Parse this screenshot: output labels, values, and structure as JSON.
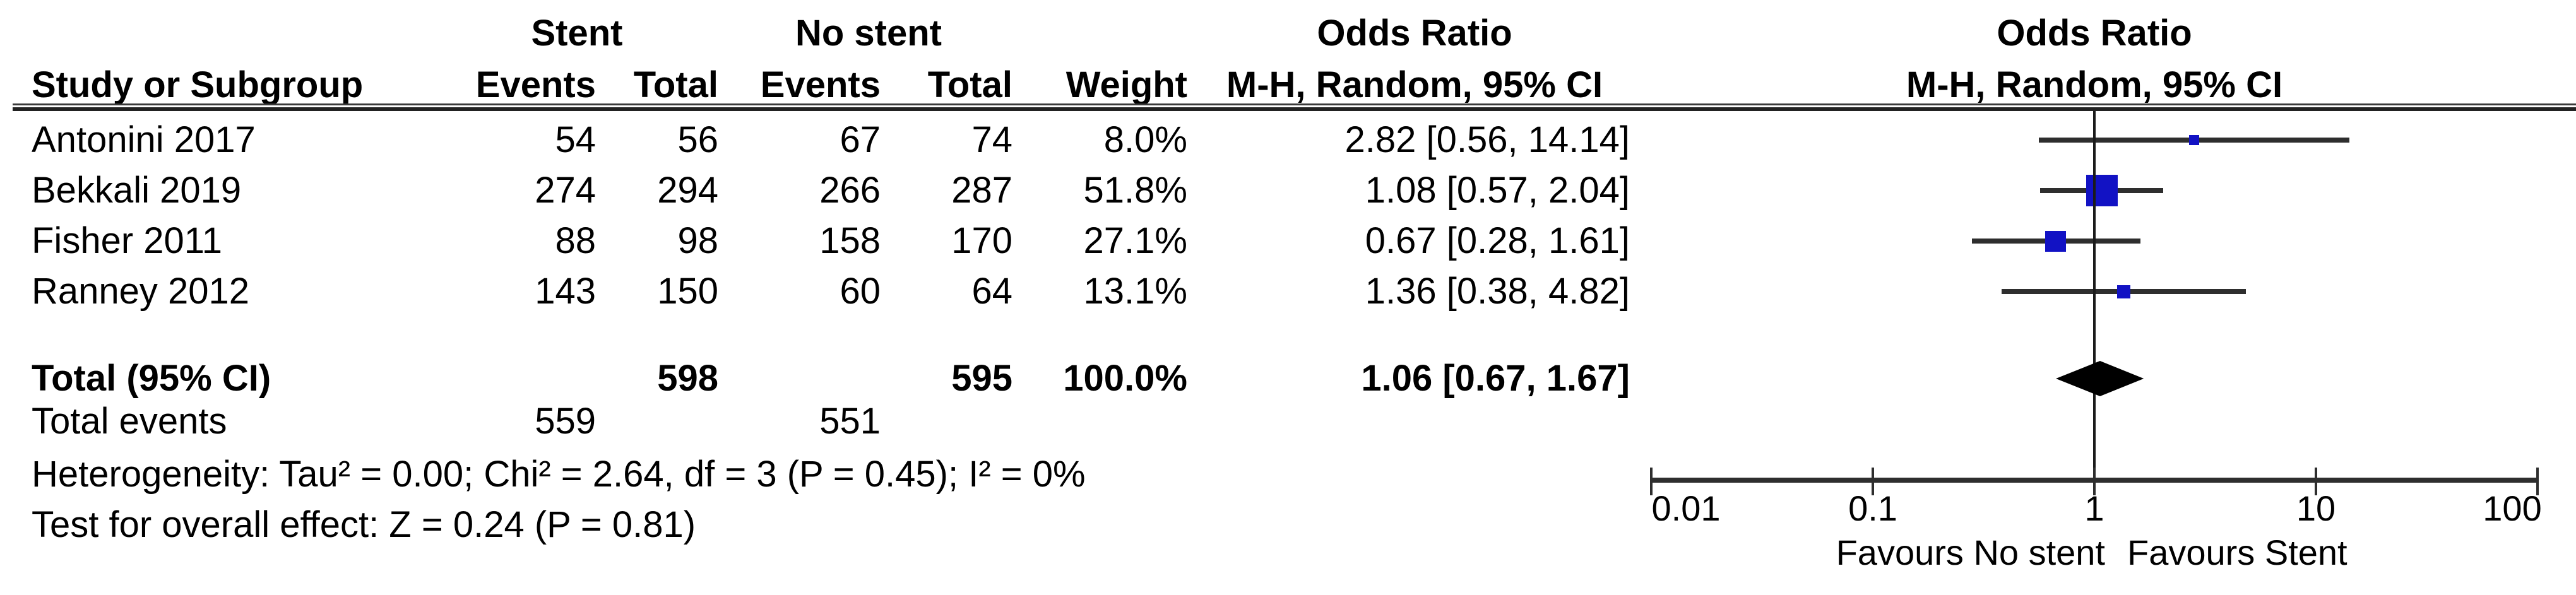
{
  "table": {
    "header": {
      "stent_group": "Stent",
      "nostent_group": "No stent",
      "study_col": "Study or Subgroup",
      "stent_events_col": "Events",
      "stent_total_col": "Total",
      "nostent_events_col": "Events",
      "nostent_total_col": "Total",
      "weight_col": "Weight",
      "or_title": "Odds Ratio",
      "or_subtitle": "M-H, Random, 95% CI",
      "plot_or_title": "Odds Ratio",
      "plot_or_subtitle": "M-H, Random, 95% CI"
    },
    "total_events_label": "Total events"
  },
  "colors": {
    "square": "#1212c4",
    "ci_line": "#2e2e2e",
    "diamond": "#000000",
    "text": "#000000",
    "rule": "#222222"
  },
  "chart_data": {
    "type": "scatter",
    "subtype": "forest-plot-odds-ratio",
    "title": "Odds Ratio",
    "subtitle": "M-H, Random, 95% CI",
    "x_scale": "log10",
    "x_range": [
      0.01,
      100
    ],
    "x_ticks": [
      0.01,
      0.1,
      1,
      10,
      100
    ],
    "x_axis_labels": {
      "left": "Favours No stent",
      "right": "Favours Stent"
    },
    "studies": [
      {
        "study": "Antonini 2017",
        "stent_events": 54,
        "stent_total": 56,
        "no_stent_events": 67,
        "no_stent_total": 74,
        "weight_pct": 8.0,
        "odds_ratio": 2.82,
        "ci_lower": 0.56,
        "ci_upper": 14.14
      },
      {
        "study": "Bekkali 2019",
        "stent_events": 274,
        "stent_total": 294,
        "no_stent_events": 266,
        "no_stent_total": 287,
        "weight_pct": 51.8,
        "odds_ratio": 1.08,
        "ci_lower": 0.57,
        "ci_upper": 2.04
      },
      {
        "study": "Fisher 2011",
        "stent_events": 88,
        "stent_total": 98,
        "no_stent_events": 158,
        "no_stent_total": 170,
        "weight_pct": 27.1,
        "odds_ratio": 0.67,
        "ci_lower": 0.28,
        "ci_upper": 1.61
      },
      {
        "study": "Ranney 2012",
        "stent_events": 143,
        "stent_total": 150,
        "no_stent_events": 60,
        "no_stent_total": 64,
        "weight_pct": 13.1,
        "odds_ratio": 1.36,
        "ci_lower": 0.38,
        "ci_upper": 4.82
      }
    ],
    "pooled": {
      "label": "Total (95% CI)",
      "stent_total": 598,
      "no_stent_total": 595,
      "weight_pct": 100.0,
      "odds_ratio": 1.06,
      "ci_lower": 0.67,
      "ci_upper": 1.67
    },
    "total_events": {
      "stent": 559,
      "no_stent": 551
    },
    "heterogeneity_line": "Heterogeneity: Tau² = 0.00; Chi² = 2.64, df = 3 (P = 0.45); I² = 0%",
    "overall_effect_line": "Test for overall effect: Z = 0.24 (P = 0.81)"
  }
}
